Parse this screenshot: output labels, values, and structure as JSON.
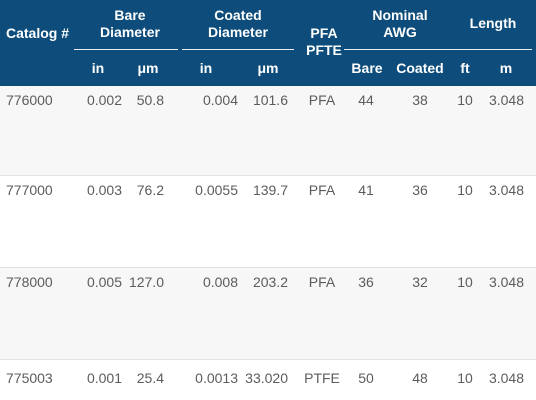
{
  "header": {
    "catalog": "Catalog #",
    "bare_diameter": "Bare Diameter",
    "coated_diameter": "Coated Diameter",
    "pfa_pfte": "PFA PFTE",
    "nominal_awg": "Nominal AWG",
    "length": "Length",
    "sub": {
      "bare_in": "in",
      "bare_um": "μm",
      "coated_in": "in",
      "coated_um": "μm",
      "awg_bare": "Bare",
      "awg_coated": "Coated",
      "len_ft": "ft",
      "len_m": "m"
    }
  },
  "rows": [
    {
      "catalog": "776000",
      "bare_in": "0.002",
      "bare_um": "50.8",
      "coated_in": "0.004",
      "coated_um": "101.6",
      "material": "PFA",
      "awg_bare": "44",
      "awg_coated": "38",
      "len_ft": "10",
      "len_m": "3.048"
    },
    {
      "catalog": "777000",
      "bare_in": "0.003",
      "bare_um": "76.2",
      "coated_in": "0.0055",
      "coated_um": "139.7",
      "material": "PFA",
      "awg_bare": "41",
      "awg_coated": "36",
      "len_ft": "10",
      "len_m": "3.048"
    },
    {
      "catalog": "778000",
      "bare_in": "0.005",
      "bare_um": "127.0",
      "coated_in": "0.008",
      "coated_um": "203.2",
      "material": "PFA",
      "awg_bare": "36",
      "awg_coated": "32",
      "len_ft": "10",
      "len_m": "3.048"
    },
    {
      "catalog": "775003",
      "bare_in": "0.001",
      "bare_um": "25.4",
      "coated_in": "0.0013",
      "coated_um": "33.020",
      "material": "PTFE",
      "awg_bare": "50",
      "awg_coated": "48",
      "len_ft": "10",
      "len_m": "3.048"
    }
  ],
  "colors": {
    "header_bg": "#0e4d7b",
    "header_text": "#ffffff",
    "row_text": "#5c5c5c",
    "row_alt_bg": "#f7f7f7"
  }
}
